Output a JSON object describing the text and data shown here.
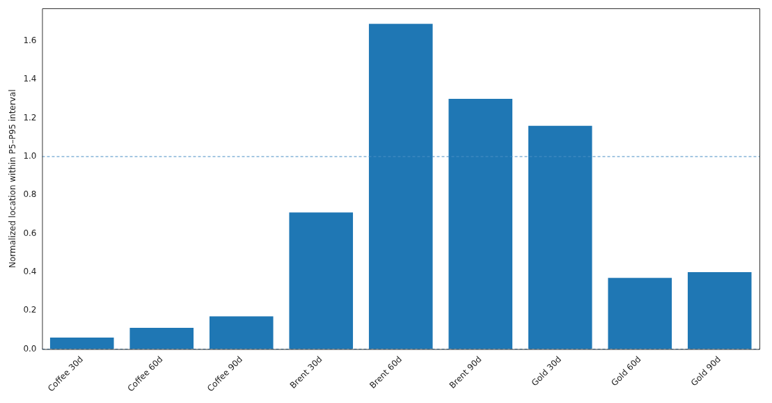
{
  "chart_data": {
    "type": "bar",
    "ylabel": "Normalized location within P5–P95 interval",
    "categories": [
      "Coffee 30d",
      "Coffee 60d",
      "Coffee 90d",
      "Brent 30d",
      "Brent 60d",
      "Brent 90d",
      "Gold 30d",
      "Gold 60d",
      "Gold 90d"
    ],
    "values": [
      0.06,
      0.11,
      0.17,
      0.71,
      1.69,
      1.3,
      1.16,
      0.37,
      0.4
    ],
    "color": "#1f77b4",
    "ylim": [
      0,
      1.77
    ],
    "yticks": [
      {
        "value": 0,
        "label": "0.0"
      },
      {
        "value": 0.2,
        "label": "0.2"
      },
      {
        "value": 0.4,
        "label": "0.4"
      },
      {
        "value": 0.6,
        "label": "0.6"
      },
      {
        "value": 0.8,
        "label": "0.8"
      },
      {
        "value": 1,
        "label": "1.0"
      },
      {
        "value": 1.2,
        "label": "1.2"
      },
      {
        "value": 1.4,
        "label": "1.4"
      },
      {
        "value": 1.6,
        "label": "1.6"
      }
    ],
    "ref_lines": [
      {
        "axis": "y",
        "value": 0,
        "color": "#4a90c4",
        "line_style": "dashed"
      },
      {
        "axis": "y",
        "value": 1,
        "color": "#4a90c4",
        "line_style": "dashed"
      }
    ],
    "grid": false,
    "legend": false
  }
}
